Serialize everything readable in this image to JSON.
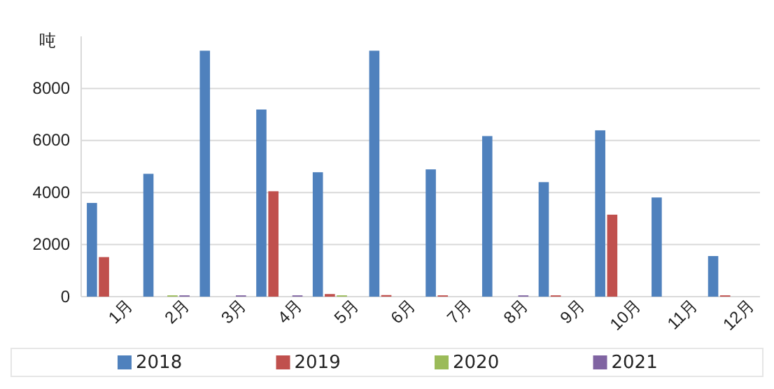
{
  "chart_data": {
    "type": "bar",
    "ylabel": "吨",
    "categories": [
      "1月",
      "2月",
      "3月",
      "4月",
      "5月",
      "6月",
      "7月",
      "8月",
      "9月",
      "10月",
      "11月",
      "12月"
    ],
    "series": [
      {
        "name": "2018",
        "color": "#4f81bd",
        "values": [
          3600,
          4720,
          9450,
          7190,
          4780,
          9450,
          4890,
          6170,
          4400,
          6390,
          3810,
          1560
        ]
      },
      {
        "name": "2019",
        "color": "#c0504d",
        "values": [
          1520,
          null,
          null,
          4050,
          100,
          60,
          50,
          null,
          50,
          3150,
          null,
          50
        ]
      },
      {
        "name": "2020",
        "color": "#9bbb59",
        "values": [
          null,
          50,
          null,
          null,
          50,
          null,
          null,
          null,
          null,
          null,
          null,
          null
        ]
      },
      {
        "name": "2021",
        "color": "#8064a2",
        "values": [
          null,
          50,
          50,
          50,
          null,
          null,
          null,
          50,
          null,
          null,
          null,
          null
        ]
      }
    ],
    "ylim": [
      0,
      10000
    ],
    "yticks": [
      0,
      2000,
      4000,
      6000,
      8000
    ],
    "grid": "y",
    "legend": "bottom"
  }
}
